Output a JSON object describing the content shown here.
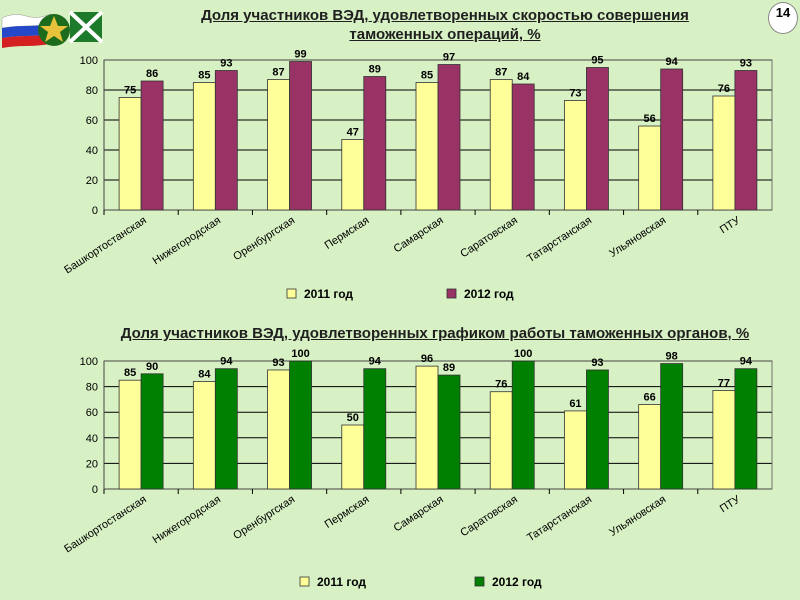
{
  "header": {
    "page_number": "14"
  },
  "chart_data": [
    {
      "type": "bar",
      "title": "Доля участников ВЭД, удовлетворенных скоростью совершения таможенных операций, %",
      "categories": [
        "Башкортостанская",
        "Нижегородская",
        "Оренбургская",
        "Пермская",
        "Самарская",
        "Саратовская",
        "Татарстанская",
        "Ульяновская",
        "ПТУ"
      ],
      "series": [
        {
          "name": "2011 год",
          "color": "#ffff99",
          "values": [
            75,
            85,
            87,
            47,
            85,
            87,
            73,
            56,
            76
          ]
        },
        {
          "name": "2012 год",
          "color": "#993366",
          "values": [
            86,
            93,
            99,
            89,
            97,
            84,
            95,
            94,
            93
          ]
        }
      ],
      "ylim": [
        0,
        100
      ],
      "yticks": [
        "0",
        "20",
        "40",
        "60",
        "80",
        "100"
      ],
      "grid": true,
      "legend": "bottom"
    },
    {
      "type": "bar",
      "title": "Доля участников ВЭД, удовлетворенных графиком работы таможенных органов, %",
      "categories": [
        "Башкортостанская",
        "Нижегородская",
        "Оренбургская",
        "Пермская",
        "Самарская",
        "Саратовская",
        "Татарстанская",
        "Ульяновская",
        "ПТУ"
      ],
      "series": [
        {
          "name": "2011 год",
          "color": "#ffff99",
          "values": [
            85,
            84,
            93,
            50,
            96,
            76,
            61,
            66,
            77
          ]
        },
        {
          "name": "2012 год",
          "color": "#008000",
          "values": [
            90,
            94,
            100,
            94,
            89,
            100,
            93,
            98,
            94
          ]
        }
      ],
      "ylim": [
        0,
        100
      ],
      "yticks": [
        "0",
        "20",
        "40",
        "60",
        "80",
        "100"
      ],
      "grid": true,
      "legend": "bottom"
    }
  ]
}
